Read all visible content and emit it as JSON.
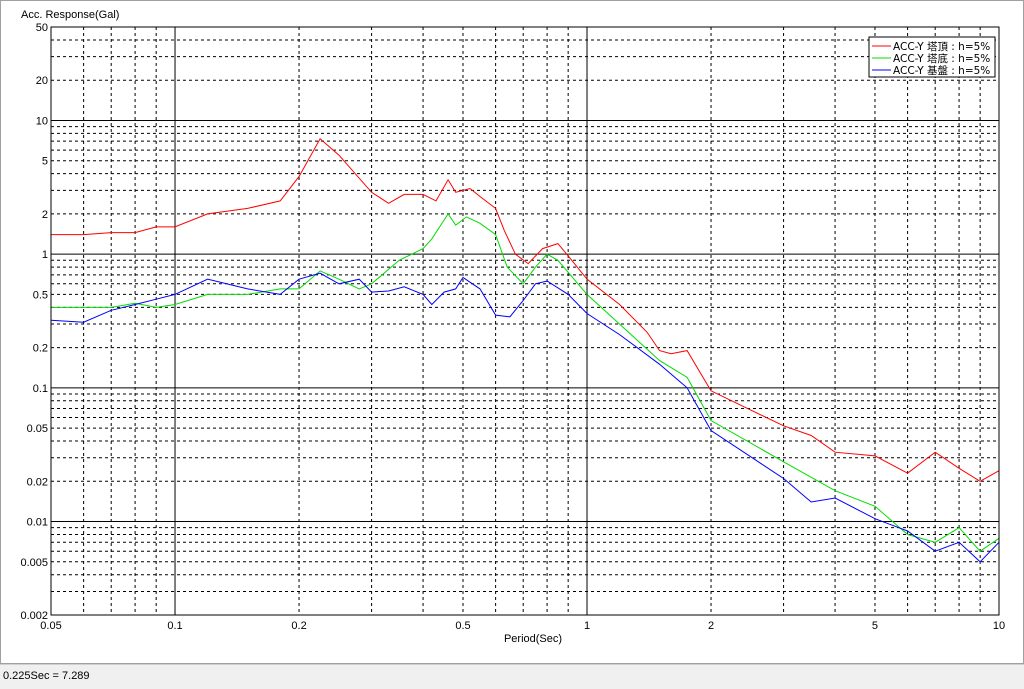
{
  "status": {
    "text": "0.225Sec = 7.289"
  },
  "colors": {
    "red": "#ff0000",
    "green": "#00dd00",
    "blue": "#0000ff",
    "frame": "#000000",
    "grid": "#000000"
  },
  "chart_data": {
    "type": "line",
    "title": "",
    "ylabel": "Acc. Response(Gal)",
    "xlabel": "Period(Sec)",
    "xscale": "log",
    "yscale": "log",
    "xlim": [
      0.05,
      10
    ],
    "ylim": [
      0.002,
      50
    ],
    "grid": true,
    "legend_position": "top-right",
    "x_ticks": [
      {
        "v": 0.05,
        "label": "0.05"
      },
      {
        "v": 0.1,
        "label": "0.1"
      },
      {
        "v": 0.2,
        "label": "0.2"
      },
      {
        "v": 0.5,
        "label": "0.5"
      },
      {
        "v": 1,
        "label": "1"
      },
      {
        "v": 2,
        "label": "2"
      },
      {
        "v": 5,
        "label": "5"
      },
      {
        "v": 10,
        "label": "10"
      }
    ],
    "y_ticks": [
      {
        "v": 0.002,
        "label": "0.002"
      },
      {
        "v": 0.005,
        "label": "0.005"
      },
      {
        "v": 0.01,
        "label": "0.01"
      },
      {
        "v": 0.02,
        "label": "0.02"
      },
      {
        "v": 0.05,
        "label": "0.05"
      },
      {
        "v": 0.1,
        "label": "0.1"
      },
      {
        "v": 0.2,
        "label": "0.2"
      },
      {
        "v": 0.5,
        "label": "0.5"
      },
      {
        "v": 1,
        "label": "1"
      },
      {
        "v": 2,
        "label": "2"
      },
      {
        "v": 5,
        "label": "5"
      },
      {
        "v": 10,
        "label": "10"
      },
      {
        "v": 20,
        "label": "20"
      },
      {
        "v": 50,
        "label": "50"
      }
    ],
    "series": [
      {
        "name": "ACC-Y 塔頂 : h=5%",
        "color": "#ff0000",
        "points": [
          [
            0.05,
            1.4
          ],
          [
            0.06,
            1.4
          ],
          [
            0.07,
            1.45
          ],
          [
            0.08,
            1.45
          ],
          [
            0.09,
            1.6
          ],
          [
            0.1,
            1.6
          ],
          [
            0.12,
            2.0
          ],
          [
            0.15,
            2.2
          ],
          [
            0.18,
            2.5
          ],
          [
            0.2,
            3.8
          ],
          [
            0.225,
            7.289
          ],
          [
            0.25,
            5.5
          ],
          [
            0.3,
            2.9
          ],
          [
            0.33,
            2.4
          ],
          [
            0.36,
            2.8
          ],
          [
            0.4,
            2.8
          ],
          [
            0.43,
            2.5
          ],
          [
            0.46,
            3.6
          ],
          [
            0.48,
            2.9
          ],
          [
            0.52,
            3.1
          ],
          [
            0.55,
            2.7
          ],
          [
            0.6,
            2.2
          ],
          [
            0.63,
            1.5
          ],
          [
            0.67,
            1.0
          ],
          [
            0.72,
            0.85
          ],
          [
            0.78,
            1.1
          ],
          [
            0.85,
            1.2
          ],
          [
            0.9,
            0.97
          ],
          [
            1.0,
            0.65
          ],
          [
            1.2,
            0.42
          ],
          [
            1.4,
            0.26
          ],
          [
            1.5,
            0.19
          ],
          [
            1.6,
            0.18
          ],
          [
            1.75,
            0.19
          ],
          [
            2.0,
            0.095
          ],
          [
            2.5,
            0.068
          ],
          [
            3.0,
            0.052
          ],
          [
            3.5,
            0.044
          ],
          [
            4.0,
            0.033
          ],
          [
            5.0,
            0.031
          ],
          [
            6.0,
            0.023
          ],
          [
            7.0,
            0.033
          ],
          [
            8.0,
            0.025
          ],
          [
            9.0,
            0.02
          ],
          [
            10.0,
            0.024
          ]
        ]
      },
      {
        "name": "ACC-Y 塔底 : h=5%",
        "color": "#00dd00",
        "points": [
          [
            0.05,
            0.4
          ],
          [
            0.06,
            0.4
          ],
          [
            0.07,
            0.4
          ],
          [
            0.08,
            0.43
          ],
          [
            0.09,
            0.4
          ],
          [
            0.1,
            0.42
          ],
          [
            0.12,
            0.5
          ],
          [
            0.15,
            0.5
          ],
          [
            0.18,
            0.55
          ],
          [
            0.2,
            0.55
          ],
          [
            0.225,
            0.75
          ],
          [
            0.25,
            0.65
          ],
          [
            0.28,
            0.55
          ],
          [
            0.3,
            0.6
          ],
          [
            0.35,
            0.9
          ],
          [
            0.4,
            1.1
          ],
          [
            0.42,
            1.3
          ],
          [
            0.46,
            2.0
          ],
          [
            0.48,
            1.65
          ],
          [
            0.51,
            1.9
          ],
          [
            0.55,
            1.7
          ],
          [
            0.6,
            1.4
          ],
          [
            0.64,
            0.8
          ],
          [
            0.7,
            0.6
          ],
          [
            0.75,
            0.8
          ],
          [
            0.8,
            1.0
          ],
          [
            0.85,
            0.9
          ],
          [
            1.0,
            0.5
          ],
          [
            1.2,
            0.3
          ],
          [
            1.5,
            0.16
          ],
          [
            1.75,
            0.12
          ],
          [
            2.0,
            0.057
          ],
          [
            3.0,
            0.028
          ],
          [
            4.0,
            0.017
          ],
          [
            5.0,
            0.013
          ],
          [
            6.0,
            0.008
          ],
          [
            7.0,
            0.007
          ],
          [
            8.0,
            0.009
          ],
          [
            9.0,
            0.006
          ],
          [
            10.0,
            0.0075
          ]
        ]
      },
      {
        "name": "ACC-Y 基盤 : h=5%",
        "color": "#0000ff",
        "points": [
          [
            0.05,
            0.32
          ],
          [
            0.06,
            0.31
          ],
          [
            0.07,
            0.38
          ],
          [
            0.08,
            0.42
          ],
          [
            0.09,
            0.46
          ],
          [
            0.1,
            0.5
          ],
          [
            0.12,
            0.65
          ],
          [
            0.15,
            0.55
          ],
          [
            0.18,
            0.5
          ],
          [
            0.2,
            0.65
          ],
          [
            0.225,
            0.72
          ],
          [
            0.25,
            0.6
          ],
          [
            0.28,
            0.65
          ],
          [
            0.3,
            0.52
          ],
          [
            0.33,
            0.53
          ],
          [
            0.36,
            0.57
          ],
          [
            0.4,
            0.5
          ],
          [
            0.42,
            0.42
          ],
          [
            0.45,
            0.52
          ],
          [
            0.48,
            0.55
          ],
          [
            0.5,
            0.67
          ],
          [
            0.55,
            0.55
          ],
          [
            0.6,
            0.35
          ],
          [
            0.65,
            0.34
          ],
          [
            0.7,
            0.45
          ],
          [
            0.75,
            0.6
          ],
          [
            0.8,
            0.63
          ],
          [
            0.9,
            0.5
          ],
          [
            1.0,
            0.36
          ],
          [
            1.2,
            0.25
          ],
          [
            1.5,
            0.15
          ],
          [
            1.75,
            0.1
          ],
          [
            2.0,
            0.048
          ],
          [
            3.0,
            0.021
          ],
          [
            3.5,
            0.014
          ],
          [
            4.0,
            0.015
          ],
          [
            5.0,
            0.0105
          ],
          [
            6.0,
            0.0085
          ],
          [
            7.0,
            0.006
          ],
          [
            8.0,
            0.007
          ],
          [
            9.0,
            0.005
          ],
          [
            10.0,
            0.007
          ]
        ]
      }
    ]
  }
}
